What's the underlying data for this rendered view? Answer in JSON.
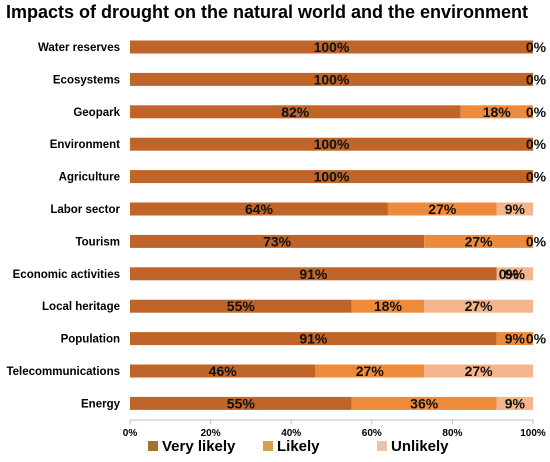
{
  "chart_data": {
    "type": "bar",
    "orientation": "horizontal",
    "stacked": true,
    "title": "Impacts of drought on the natural world and the environment",
    "categories": [
      "Water reserves",
      "Ecosystems",
      "Geopark",
      "Environment",
      "Agriculture",
      "Labor sector",
      "Tourism",
      "Economic activities",
      "Local heritage",
      "Population",
      "Telecommunications",
      "Energy"
    ],
    "series": [
      {
        "name": "Very likely",
        "color": "#c0652a",
        "values": [
          100,
          100,
          82,
          100,
          100,
          64,
          73,
          91,
          55,
          91,
          46,
          55
        ]
      },
      {
        "name": "Likely",
        "color": "#ed8a3c",
        "values": [
          0,
          0,
          18,
          0,
          0,
          27,
          27,
          0,
          18,
          9,
          27,
          36
        ]
      },
      {
        "name": "Unlikely",
        "color": "#f4b48c",
        "values": [
          0,
          0,
          0,
          0,
          0,
          9,
          0,
          9,
          27,
          0,
          27,
          9
        ]
      }
    ],
    "data_labels": [
      [
        "100%",
        "",
        "0%"
      ],
      [
        "100%",
        "",
        "0%"
      ],
      [
        "82%",
        "18%",
        "0%"
      ],
      [
        "100%",
        "",
        "0%"
      ],
      [
        "100%",
        "",
        "0%"
      ],
      [
        "64%",
        "27%",
        "9%"
      ],
      [
        "73%",
        "27%",
        "0%"
      ],
      [
        "91%",
        "0%",
        "9%"
      ],
      [
        "55%",
        "18%",
        "27%"
      ],
      [
        "91%",
        "9%",
        "0%"
      ],
      [
        "46%",
        "27%",
        "27%"
      ],
      [
        "55%",
        "36%",
        "9%"
      ]
    ],
    "xlim": [
      0,
      100
    ],
    "xticks": [
      "0%",
      "20%",
      "40%",
      "60%",
      "80%",
      "100%"
    ],
    "legend_position": "bottom",
    "legend_colors": [
      "#a8702e",
      "#d4a04a",
      "#e7c6a8"
    ],
    "grid": false
  }
}
